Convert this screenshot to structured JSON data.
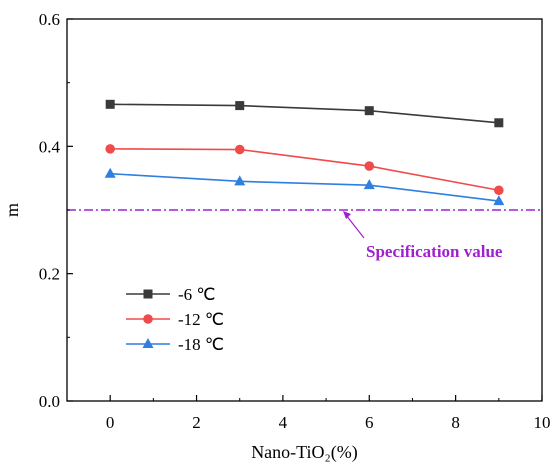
{
  "chart_data": {
    "type": "line",
    "x": [
      0,
      3,
      6,
      9
    ],
    "xlabel": "Nano-TiO₂(%)",
    "ylabel": "m",
    "xlim": [
      -1,
      10
    ],
    "ylim": [
      0,
      0.6
    ],
    "xticks": [
      0,
      2,
      4,
      6,
      8,
      10
    ],
    "yticks": [
      0.0,
      0.2,
      0.4,
      0.6
    ],
    "x_tick_labels": [
      "0",
      "2",
      "4",
      "6",
      "8",
      "10"
    ],
    "y_tick_labels": [
      "0.0",
      "0.2",
      "0.4",
      "0.6"
    ],
    "grid": false,
    "legend_position": "lower-left",
    "series": [
      {
        "name": "-6 ℃",
        "values": [
          0.466,
          0.464,
          0.456,
          0.437
        ],
        "color": "#3a3a3a",
        "marker": "square"
      },
      {
        "name": "-12 ℃",
        "values": [
          0.396,
          0.395,
          0.369,
          0.331
        ],
        "color": "#f04a4a",
        "marker": "circle"
      },
      {
        "name": "-18 ℃",
        "values": [
          0.357,
          0.345,
          0.339,
          0.314
        ],
        "color": "#2f7fe0",
        "marker": "triangle"
      }
    ],
    "reference_line": {
      "y": 0.3,
      "style": "dash-dot",
      "color": "#a020d0",
      "label": "Specification value"
    }
  }
}
